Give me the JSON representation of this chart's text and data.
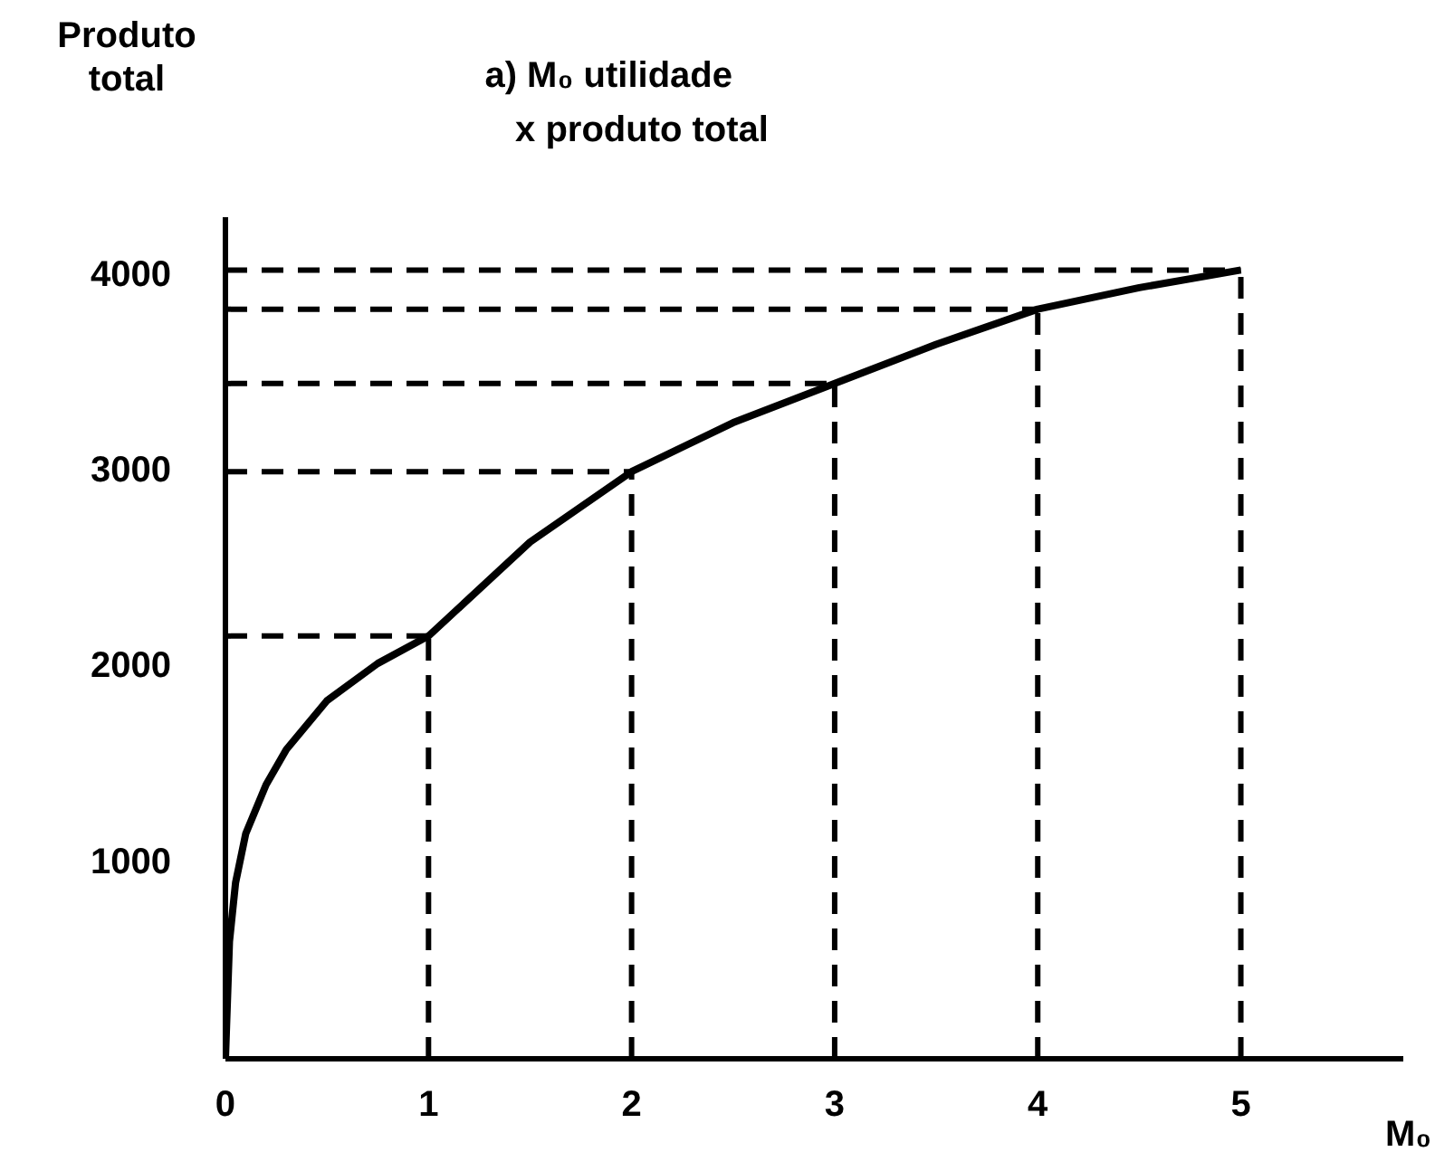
{
  "chart_data": {
    "type": "line",
    "title": "a) M₀ utilidade x produto total",
    "xlabel": "M₀",
    "ylabel": "Produto total",
    "xlim": [
      0,
      5.8
    ],
    "ylim": [
      0,
      4300
    ],
    "xticks": [
      0,
      1,
      2,
      3,
      4,
      5
    ],
    "yticks": [
      1000,
      2000,
      3000,
      4000
    ],
    "grid": false,
    "legend": false,
    "marker": "none",
    "series": [
      {
        "color": "#000000",
        "line_style": "solid",
        "x": [
          0,
          0.02,
          0.05,
          0.1,
          0.2,
          0.3,
          0.5,
          0.75,
          1,
          1.5,
          2,
          2.5,
          3,
          3.5,
          4,
          4.5,
          5
        ],
        "values": [
          0,
          600,
          900,
          1150,
          1400,
          1580,
          1830,
          2020,
          2160,
          2640,
          3000,
          3250,
          3450,
          3650,
          3830,
          3940,
          4030
        ]
      },
      {
        "color": "#000000",
        "line_style": "dashed",
        "x": [
          1,
          1
        ],
        "values": [
          0,
          2160
        ]
      },
      {
        "color": "#000000",
        "line_style": "dashed",
        "x": [
          2,
          2
        ],
        "values": [
          0,
          3000
        ]
      },
      {
        "color": "#000000",
        "line_style": "dashed",
        "x": [
          3,
          3
        ],
        "values": [
          0,
          3450
        ]
      },
      {
        "color": "#000000",
        "line_style": "dashed",
        "x": [
          4,
          4
        ],
        "values": [
          0,
          3830
        ]
      },
      {
        "color": "#000000",
        "line_style": "dashed",
        "x": [
          5,
          5
        ],
        "values": [
          0,
          4030
        ]
      },
      {
        "color": "#000000",
        "line_style": "dashed",
        "x": [
          0,
          1
        ],
        "values": [
          2160,
          2160
        ]
      },
      {
        "color": "#000000",
        "line_style": "dashed",
        "x": [
          0,
          2
        ],
        "values": [
          3000,
          3000
        ]
      },
      {
        "color": "#000000",
        "line_style": "dashed",
        "x": [
          0,
          3
        ],
        "values": [
          3450,
          3450
        ]
      },
      {
        "color": "#000000",
        "line_style": "dashed",
        "x": [
          0,
          4
        ],
        "values": [
          3830,
          3830
        ]
      },
      {
        "color": "#000000",
        "line_style": "dashed",
        "x": [
          0,
          5
        ],
        "values": [
          4030,
          4030
        ]
      }
    ]
  }
}
